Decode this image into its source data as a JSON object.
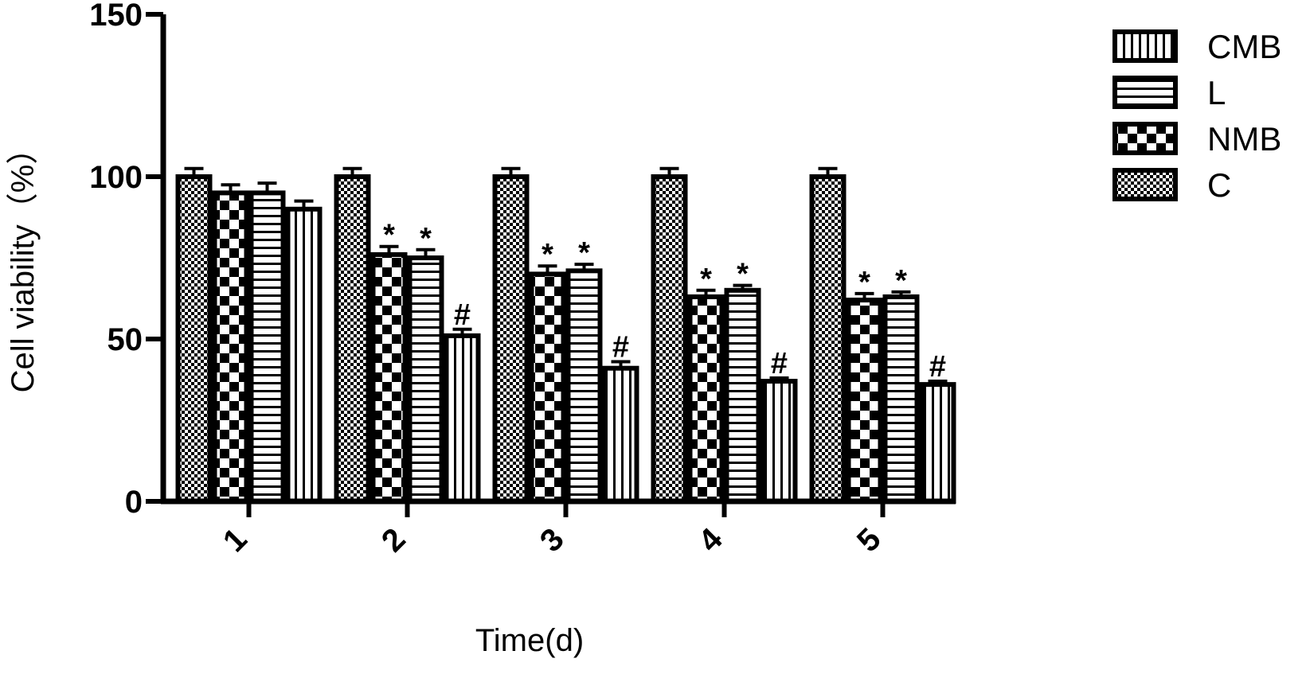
{
  "chart_data": {
    "type": "bar",
    "title": "",
    "xlabel": "Time(d)",
    "ylabel": "Cell viability（%）",
    "ylim": [
      0,
      150
    ],
    "yticks": [
      "0",
      "50",
      "100",
      "150"
    ],
    "categories": [
      "1",
      "2",
      "3",
      "4",
      "5"
    ],
    "series_order_in_group": [
      "C",
      "NMB",
      "L",
      "CMB"
    ],
    "series": [
      {
        "name": "C",
        "pattern": "fine-checker",
        "values": [
          100,
          100,
          100,
          100,
          100
        ],
        "errors": [
          2.5,
          2.5,
          2.5,
          2.5,
          2.5
        ],
        "marks": [
          "",
          "",
          "",
          "",
          ""
        ]
      },
      {
        "name": "NMB",
        "pattern": "coarse-checker",
        "values": [
          95,
          76,
          70,
          63,
          62
        ],
        "errors": [
          2.5,
          2.5,
          2.5,
          2.0,
          2.0
        ],
        "marks": [
          "",
          "*",
          "*",
          "*",
          "*"
        ]
      },
      {
        "name": "L",
        "pattern": "horizontal",
        "values": [
          95,
          75,
          71,
          65,
          63
        ],
        "errors": [
          3.0,
          2.5,
          2.0,
          1.5,
          1.5
        ],
        "marks": [
          "",
          "*",
          "*",
          "*",
          "*"
        ]
      },
      {
        "name": "CMB",
        "pattern": "vertical",
        "values": [
          90,
          51,
          41,
          37,
          36
        ],
        "errors": [
          2.5,
          2.0,
          2.0,
          1.0,
          1.0
        ],
        "marks": [
          "",
          "#",
          "#",
          "#",
          "#"
        ]
      }
    ],
    "legend": {
      "placement": "top-right",
      "entries": [
        {
          "name": "CMB",
          "pattern": "vertical"
        },
        {
          "name": "L",
          "pattern": "horizontal"
        },
        {
          "name": "NMB",
          "pattern": "coarse-checker"
        },
        {
          "name": "C",
          "pattern": "fine-checker"
        }
      ]
    },
    "grid": false,
    "colors": {
      "ink": "#000000",
      "fill": "#ffffff"
    }
  }
}
